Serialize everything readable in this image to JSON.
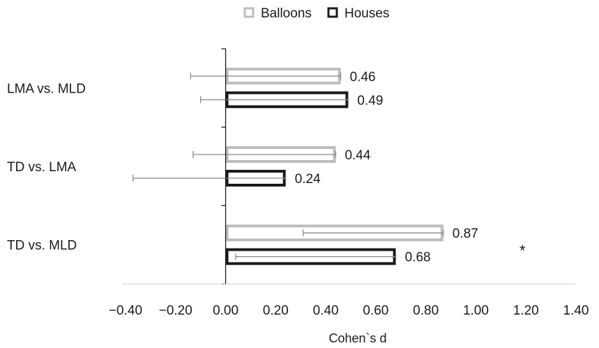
{
  "chart_data": {
    "type": "bar",
    "orientation": "horizontal",
    "xlabel": "Cohen`s d",
    "xlim": [
      -0.4,
      1.4
    ],
    "x_ticks": [
      -0.4,
      -0.2,
      0.0,
      0.2,
      0.4,
      0.6,
      0.8,
      1.0,
      1.2,
      1.4
    ],
    "x_tick_labels": [
      "−0.40",
      "−0.20",
      "0.00",
      "0.20",
      "0.40",
      "0.60",
      "0.80",
      "1.00",
      "1.20",
      "1.40"
    ],
    "categories": [
      "LMA vs. MLD",
      "TD vs. LMA",
      "TD vs. MLD"
    ],
    "legend_position": "top",
    "grid": false,
    "series": [
      {
        "name": "Balloons",
        "color": "#bdbdbd",
        "values": [
          0.46,
          0.44,
          0.87
        ],
        "value_labels": [
          "0.46",
          "0.44",
          "0.87"
        ],
        "error_low": [
          -0.14,
          -0.13,
          0.31
        ],
        "error_high": [
          0.46,
          0.44,
          0.87
        ]
      },
      {
        "name": "Houses",
        "color": "#1a1a1a",
        "values": [
          0.49,
          0.24,
          0.68
        ],
        "value_labels": [
          "0.49",
          "0.24",
          "0.68"
        ],
        "error_low": [
          -0.1,
          -0.37,
          0.04
        ],
        "error_high": [
          0.49,
          0.24,
          0.68
        ]
      }
    ],
    "annotations": [
      {
        "text": "*",
        "category": "TD vs. MLD",
        "x": 1.2
      }
    ]
  }
}
